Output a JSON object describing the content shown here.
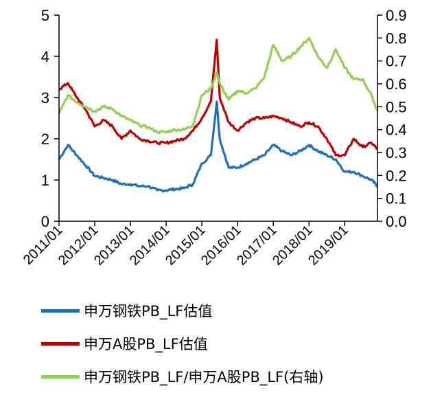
{
  "chart_data": {
    "type": "line",
    "title": "",
    "xlabel": "",
    "ylabel": "",
    "x": [
      "2011/01",
      "2011/04",
      "2011/07",
      "2011/10",
      "2012/01",
      "2012/04",
      "2012/07",
      "2012/10",
      "2013/01",
      "2013/04",
      "2013/07",
      "2013/10",
      "2014/01",
      "2014/04",
      "2014/07",
      "2014/10",
      "2015/01",
      "2015/04",
      "2015/06",
      "2015/07",
      "2015/10",
      "2016/01",
      "2016/04",
      "2016/07",
      "2016/10",
      "2017/01",
      "2017/04",
      "2017/07",
      "2017/10",
      "2018/01",
      "2018/04",
      "2018/07",
      "2018/10",
      "2019/01",
      "2019/04",
      "2019/07",
      "2019/10",
      "2019/12"
    ],
    "x_tick_labels": [
      "2011/01",
      "2012/01",
      "2013/01",
      "2014/01",
      "2015/01",
      "2016/01",
      "2017/01",
      "2018/01",
      "2019/01"
    ],
    "ylim_left": [
      0,
      5
    ],
    "yticks_left": [
      "0",
      "1",
      "2",
      "3",
      "4",
      "5"
    ],
    "ylim_right": [
      0.0,
      0.9
    ],
    "yticks_right": [
      "0.0",
      "0.1",
      "0.2",
      "0.3",
      "0.4",
      "0.5",
      "0.6",
      "0.7",
      "0.8",
      "0.9"
    ],
    "grid": false,
    "legend_position": "bottom",
    "series": [
      {
        "name": "申万钢铁PB_LF估值",
        "axis": "left",
        "color": "#1f6fc1",
        "values": [
          1.5,
          1.85,
          1.6,
          1.35,
          1.1,
          1.05,
          1.0,
          0.9,
          0.9,
          0.85,
          0.85,
          0.75,
          0.75,
          0.78,
          0.8,
          0.9,
          1.4,
          1.6,
          2.9,
          2.0,
          1.3,
          1.3,
          1.4,
          1.5,
          1.6,
          1.85,
          1.7,
          1.6,
          1.7,
          1.85,
          1.7,
          1.6,
          1.5,
          1.2,
          1.2,
          1.1,
          1.0,
          0.85
        ]
      },
      {
        "name": "申万A股PB_LF估值",
        "axis": "left",
        "color": "#c00000",
        "values": [
          3.2,
          3.35,
          3.0,
          2.7,
          2.3,
          2.45,
          2.3,
          2.0,
          2.2,
          2.0,
          1.95,
          1.9,
          1.9,
          1.95,
          2.0,
          2.2,
          2.5,
          2.9,
          4.4,
          3.0,
          2.4,
          2.2,
          2.4,
          2.5,
          2.5,
          2.55,
          2.5,
          2.4,
          2.3,
          2.4,
          2.3,
          2.0,
          1.6,
          1.6,
          2.0,
          1.8,
          1.9,
          1.75
        ]
      },
      {
        "name": "申万钢铁PB_LF/申万A股PB_LF(右轴)",
        "axis": "right",
        "color": "#92d050",
        "values": [
          0.47,
          0.55,
          0.52,
          0.5,
          0.48,
          0.5,
          0.49,
          0.46,
          0.44,
          0.42,
          0.41,
          0.39,
          0.39,
          0.4,
          0.4,
          0.42,
          0.55,
          0.58,
          0.65,
          0.6,
          0.53,
          0.57,
          0.56,
          0.58,
          0.63,
          0.77,
          0.7,
          0.72,
          0.76,
          0.8,
          0.72,
          0.67,
          0.75,
          0.67,
          0.62,
          0.62,
          0.55,
          0.48
        ]
      }
    ]
  }
}
